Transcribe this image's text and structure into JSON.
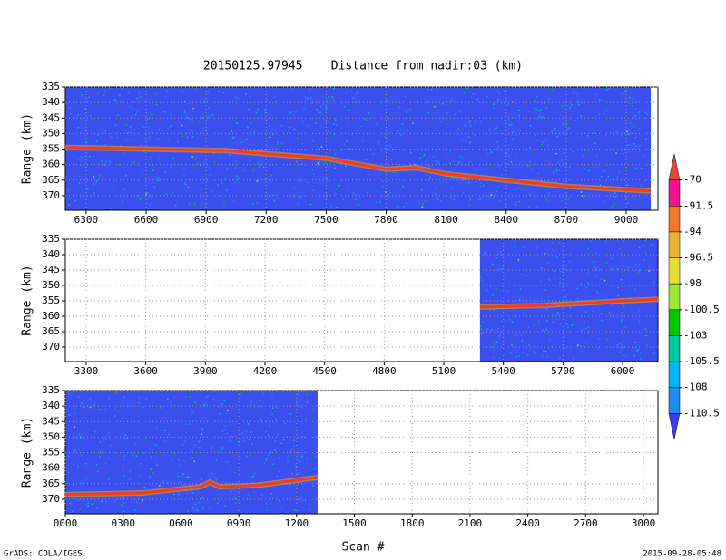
{
  "title": "20150125.97945    Distance from nadir:03 (km)",
  "xlabel": "Scan #",
  "footer_left": "GrADS: COLA/IGES",
  "footer_right": "2015-09-28-05:48",
  "colorbar": {
    "labels": [
      -70,
      -91.5,
      -94,
      -96.5,
      -98,
      -100.5,
      -103,
      -105.5,
      -108,
      -110.5
    ],
    "colors": [
      "#e8463c",
      "#f0148c",
      "#f07828",
      "#e6b432",
      "#e6dc32",
      "#a0e632",
      "#00c800",
      "#00c8a0",
      "#00b4f0",
      "#1e8cf0",
      "#3c3cf0"
    ]
  },
  "chart_data": [
    {
      "type": "line",
      "ylabel": "Range (km)",
      "color": "#f03c28",
      "x": [
        6196,
        6600,
        7000,
        7300,
        7500,
        7800,
        7950,
        8100,
        8400,
        8700,
        9123
      ],
      "values": [
        354.5,
        355,
        355.5,
        357,
        358,
        361.5,
        361,
        363,
        365,
        367,
        368.5
      ],
      "xlim": [
        6196,
        9159
      ],
      "ylim": [
        374.7,
        335
      ],
      "xticks": [
        6300,
        6600,
        6900,
        7200,
        7500,
        7800,
        8100,
        8400,
        8700,
        9000
      ],
      "yticks": [
        335,
        340,
        345,
        350,
        355,
        360,
        365,
        370
      ],
      "grid": true
    },
    {
      "type": "line",
      "ylabel": "Range (km)",
      "color": "#f03c28",
      "x": [
        5282,
        5600,
        6000,
        6178
      ],
      "values": [
        357,
        356.5,
        355,
        354.5
      ],
      "xlim": [
        3195,
        6178
      ],
      "ylim": [
        374.7,
        335
      ],
      "xticks": [
        3300,
        3600,
        3900,
        4200,
        4500,
        4800,
        5100,
        5400,
        5700,
        6000
      ],
      "yticks": [
        335,
        340,
        345,
        350,
        355,
        360,
        365,
        370
      ],
      "grid": true
    },
    {
      "type": "line",
      "ylabel": "Range (km)",
      "color": "#f03c28",
      "x": [
        0,
        400,
        700,
        750,
        800,
        1000,
        1309
      ],
      "values": [
        368.5,
        368,
        366,
        364.5,
        366,
        365.5,
        363
      ],
      "xlim": [
        0,
        3075
      ],
      "ylim": [
        374.7,
        335
      ],
      "xticks": [
        {
          "value": 0,
          "label": "0000"
        },
        {
          "value": 300,
          "label": "0300"
        },
        {
          "value": 600,
          "label": "0600"
        },
        {
          "value": 900,
          "label": "0900"
        },
        1200,
        1500,
        1800,
        2100,
        2400,
        2700,
        3000
      ],
      "yticks": [
        335,
        340,
        345,
        350,
        355,
        360,
        365,
        370
      ],
      "grid": true
    }
  ]
}
